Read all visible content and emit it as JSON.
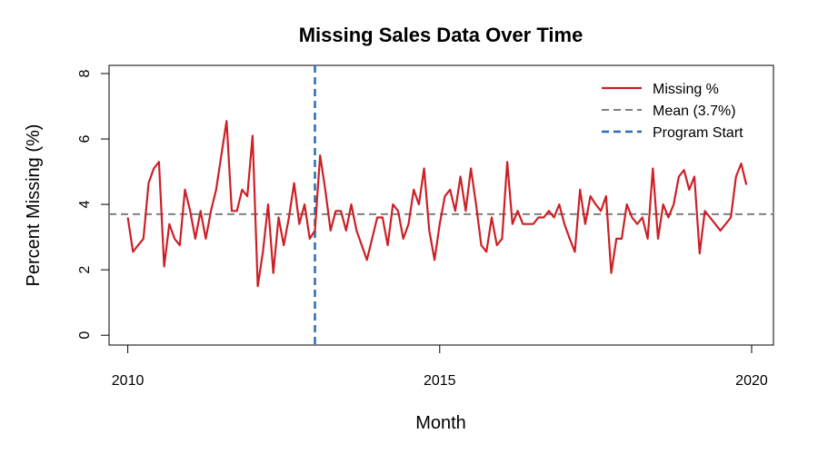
{
  "chart_data": {
    "type": "line",
    "title": "Missing Sales Data Over Time",
    "xlabel": "Month",
    "ylabel": "Percent Missing (%)",
    "xlim": [
      2009.7,
      2020.35
    ],
    "ylim": [
      -0.3,
      8.25
    ],
    "x_ticks": [
      2010,
      2015,
      2020
    ],
    "y_ticks": [
      0,
      2,
      4,
      6,
      8
    ],
    "series": [
      {
        "name": "Missing %",
        "color": "#cc2027",
        "x_start": 2010.0,
        "x_step": 0.08333,
        "values": [
          3.6,
          2.55,
          2.75,
          2.95,
          4.65,
          5.1,
          5.3,
          2.1,
          3.4,
          2.95,
          2.75,
          4.45,
          3.8,
          2.95,
          3.8,
          2.95,
          3.8,
          4.45,
          5.5,
          6.55,
          3.8,
          3.8,
          4.45,
          4.25,
          6.1,
          1.5,
          2.55,
          4.0,
          1.9,
          3.6,
          2.75,
          3.6,
          4.65,
          3.4,
          4.0,
          2.95,
          3.2,
          5.5,
          4.45,
          3.2,
          3.8,
          3.8,
          3.2,
          4.0,
          3.2,
          2.75,
          2.3,
          2.95,
          3.6,
          3.6,
          2.75,
          4.0,
          3.8,
          2.95,
          3.4,
          4.45,
          4.0,
          5.1,
          3.2,
          2.3,
          3.4,
          4.25,
          4.45,
          3.8,
          4.85,
          3.8,
          5.1,
          4.0,
          2.75,
          2.55,
          3.6,
          2.75,
          2.95,
          5.3,
          3.4,
          3.8,
          3.4,
          3.4,
          3.4,
          3.6,
          3.6,
          3.8,
          3.6,
          4.0,
          3.4,
          2.95,
          2.55,
          4.45,
          3.4,
          4.25,
          4.0,
          3.8,
          4.25,
          1.9,
          2.95,
          2.95,
          4.0,
          3.6,
          3.4,
          3.6,
          2.95,
          5.1,
          2.95,
          4.0,
          3.6,
          4.0,
          4.85,
          5.05,
          4.45,
          4.85,
          2.5,
          3.8,
          3.6,
          3.4,
          3.2,
          3.4,
          3.6,
          4.85,
          5.25,
          4.6
        ]
      }
    ],
    "reference_lines": [
      {
        "name": "Mean (3.7%)",
        "orientation": "horizontal",
        "value": 3.7,
        "color": "#808080",
        "style": "dashed"
      },
      {
        "name": "Program Start",
        "orientation": "vertical",
        "value": 2013.0,
        "color": "#2b6cb0",
        "style": "dashed"
      }
    ],
    "legend": {
      "position": "top-right",
      "entries": [
        "Missing %",
        "Mean (3.7%)",
        "Program Start"
      ]
    },
    "grid": false
  }
}
